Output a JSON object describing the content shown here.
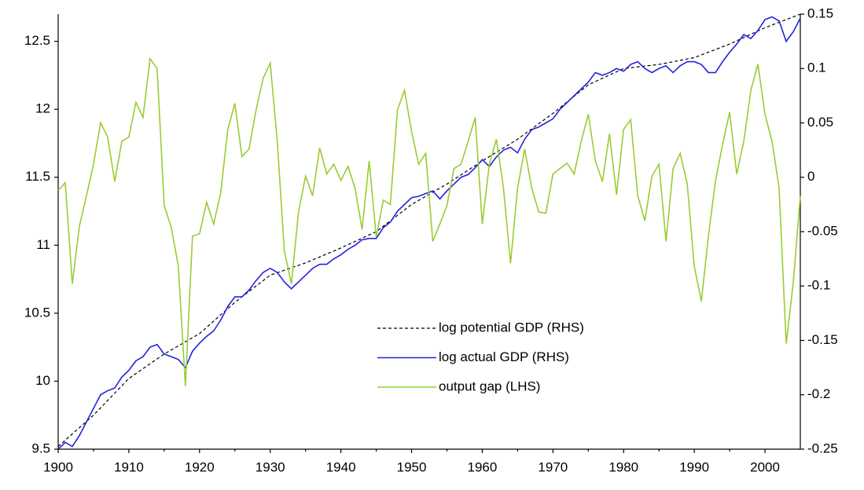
{
  "chart_data": {
    "type": "line",
    "x": [
      1900,
      1901,
      1902,
      1903,
      1904,
      1905,
      1906,
      1907,
      1908,
      1909,
      1910,
      1911,
      1912,
      1913,
      1914,
      1915,
      1916,
      1917,
      1918,
      1919,
      1920,
      1921,
      1922,
      1923,
      1924,
      1925,
      1926,
      1927,
      1928,
      1929,
      1930,
      1931,
      1932,
      1933,
      1934,
      1935,
      1936,
      1937,
      1938,
      1939,
      1940,
      1941,
      1942,
      1943,
      1944,
      1945,
      1946,
      1947,
      1948,
      1949,
      1950,
      1951,
      1952,
      1953,
      1954,
      1955,
      1956,
      1957,
      1958,
      1959,
      1960,
      1961,
      1962,
      1963,
      1964,
      1965,
      1966,
      1967,
      1968,
      1969,
      1970,
      1971,
      1972,
      1973,
      1974,
      1975,
      1976,
      1977,
      1978,
      1979,
      1980,
      1981,
      1982,
      1983,
      1984,
      1985,
      1986,
      1987,
      1988,
      1989,
      1990,
      1991,
      1992,
      1993,
      1994,
      1995,
      1996,
      1997,
      1998,
      1999,
      2000,
      2001,
      2002,
      2003,
      2004,
      2005
    ],
    "series": [
      {
        "name": "log potential GDP (RHS)",
        "color": "#000000",
        "dashed": true,
        "x": [
          1900,
          1905,
          1910,
          1915,
          1920,
          1925,
          1930,
          1935,
          1940,
          1945,
          1950,
          1955,
          1960,
          1965,
          1970,
          1975,
          1980,
          1985,
          1990,
          1995,
          2000,
          2005
        ],
        "values": [
          9.52,
          9.75,
          10.02,
          10.2,
          10.35,
          10.58,
          10.78,
          10.87,
          10.98,
          11.1,
          11.3,
          11.45,
          11.62,
          11.78,
          11.97,
          12.18,
          12.3,
          12.33,
          12.38,
          12.48,
          12.6,
          12.7
        ]
      },
      {
        "name": "log actual GDP (RHS)",
        "color": "#2222dd",
        "values": [
          9.5,
          9.55,
          9.52,
          9.6,
          9.7,
          9.8,
          9.9,
          9.93,
          9.95,
          10.03,
          10.08,
          10.15,
          10.18,
          10.25,
          10.27,
          10.2,
          10.18,
          10.16,
          10.1,
          10.22,
          10.28,
          10.33,
          10.37,
          10.45,
          10.55,
          10.62,
          10.62,
          10.67,
          10.74,
          10.8,
          10.83,
          10.8,
          10.73,
          10.68,
          10.73,
          10.78,
          10.83,
          10.86,
          10.86,
          10.9,
          10.93,
          10.97,
          11.0,
          11.04,
          11.05,
          11.05,
          11.13,
          11.17,
          11.25,
          11.3,
          11.35,
          11.36,
          11.38,
          11.4,
          11.34,
          11.4,
          11.45,
          11.5,
          11.52,
          11.57,
          11.63,
          11.58,
          11.65,
          11.7,
          11.72,
          11.68,
          11.78,
          11.85,
          11.87,
          11.9,
          11.93,
          12.0,
          12.05,
          12.1,
          12.15,
          12.2,
          12.27,
          12.25,
          12.27,
          12.3,
          12.28,
          12.33,
          12.35,
          12.3,
          12.27,
          12.3,
          12.32,
          12.27,
          12.32,
          12.35,
          12.35,
          12.33,
          12.27,
          12.27,
          12.35,
          12.42,
          12.48,
          12.55,
          12.52,
          12.58,
          12.66,
          12.68,
          12.65,
          12.5,
          12.57,
          12.67
        ]
      },
      {
        "name": "output gap (LHS)",
        "color": "#99cc33",
        "axis": "y2",
        "values": [
          -0.012,
          -0.005,
          -0.098,
          -0.045,
          -0.017,
          0.012,
          0.05,
          0.037,
          -0.004,
          0.033,
          0.037,
          0.069,
          0.055,
          0.109,
          0.1,
          -0.026,
          -0.046,
          -0.082,
          -0.192,
          -0.054,
          -0.052,
          -0.023,
          -0.043,
          -0.014,
          0.044,
          0.068,
          0.019,
          0.026,
          0.062,
          0.091,
          0.105,
          0.033,
          -0.068,
          -0.098,
          -0.032,
          0.001,
          -0.017,
          0.027,
          0.003,
          0.012,
          -0.003,
          0.01,
          -0.01,
          -0.048,
          0.015,
          -0.055,
          -0.021,
          -0.025,
          0.062,
          0.08,
          0.042,
          0.012,
          0.022,
          -0.059,
          -0.043,
          -0.026,
          0.008,
          0.012,
          0.033,
          0.055,
          -0.043,
          0.012,
          0.035,
          -0.01,
          -0.079,
          -0.01,
          0.026,
          -0.01,
          -0.032,
          -0.033,
          0.003,
          0.008,
          0.013,
          0.003,
          0.033,
          0.058,
          0.015,
          -0.004,
          0.04,
          -0.016,
          0.044,
          0.053,
          -0.017,
          -0.04,
          0.001,
          0.012,
          -0.059,
          0.008,
          0.022,
          -0.006,
          -0.082,
          -0.114,
          -0.054,
          -0.003,
          0.03,
          0.06,
          0.003,
          0.033,
          0.08,
          0.104,
          0.058,
          0.033,
          -0.01,
          -0.153,
          -0.097,
          -0.017
        ]
      }
    ],
    "xlim": [
      1900,
      2005
    ],
    "xticks": [
      1900,
      1910,
      1920,
      1930,
      1940,
      1950,
      1960,
      1970,
      1980,
      1990,
      2000
    ],
    "ylim": [
      9.5,
      12.7
    ],
    "yticks": [
      9.5,
      10,
      10.5,
      11,
      11.5,
      12,
      12.5
    ],
    "y2lim": [
      -0.25,
      0.15
    ],
    "y2ticks": [
      -0.25,
      -0.2,
      -0.15,
      -0.1,
      -0.05,
      0,
      0.05,
      0.1,
      0.15
    ],
    "legend": "center"
  }
}
